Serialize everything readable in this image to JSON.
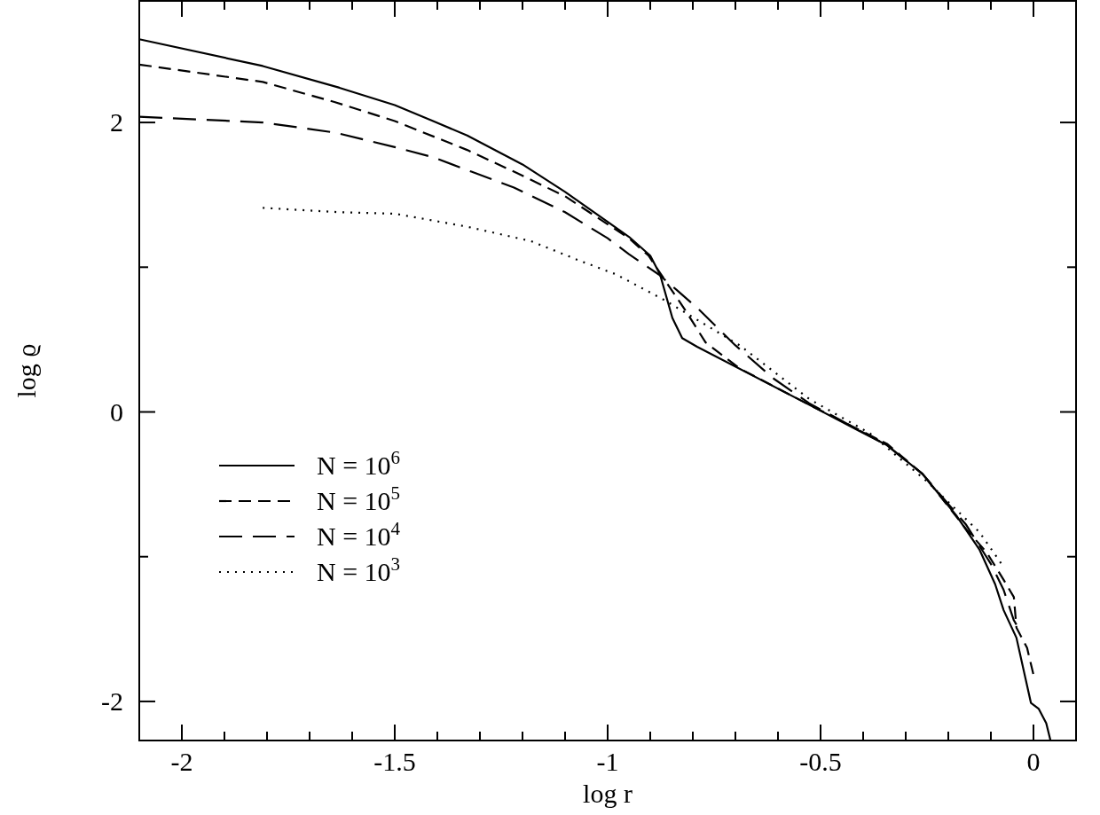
{
  "chart_data": {
    "type": "line",
    "xlabel": "log r",
    "ylabel": "log ϱ",
    "xlim": [
      -2.1,
      0.1
    ],
    "ylim": [
      -2.27,
      2.84
    ],
    "xticks": [
      {
        "value": -2.1,
        "label": null
      },
      -2,
      {
        "value": -1.9,
        "label": null
      },
      {
        "value": -1.8,
        "label": null
      },
      {
        "value": -1.7,
        "label": null
      },
      {
        "value": -1.6,
        "label": null
      },
      -1.5,
      {
        "value": -1.4,
        "label": null
      },
      {
        "value": -1.3,
        "label": null
      },
      {
        "value": -1.2,
        "label": null
      },
      {
        "value": -1.1,
        "label": null
      },
      -1,
      {
        "value": -0.9,
        "label": null
      },
      {
        "value": -0.8,
        "label": null
      },
      {
        "value": -0.7,
        "label": null
      },
      {
        "value": -0.6,
        "label": null
      },
      -0.5,
      {
        "value": -0.4,
        "label": null
      },
      {
        "value": -0.3,
        "label": null
      },
      {
        "value": -0.2,
        "label": null
      },
      {
        "value": -0.1,
        "label": null
      },
      0,
      {
        "value": 0.1,
        "label": null
      }
    ],
    "yticks": [
      -2,
      {
        "value": -1,
        "label": null
      },
      0,
      {
        "value": 1,
        "label": null
      },
      2
    ],
    "grid": false,
    "legend": "bottom left",
    "marker": "none",
    "series": [
      {
        "name": "N = 10$^{6}$",
        "color": "#000000",
        "line_style": "solid",
        "x": [
          -2.1,
          -1.81,
          -1.63,
          -1.5,
          -1.41,
          -1.33,
          -1.2,
          -1.1,
          -0.95,
          -0.9,
          -0.877,
          -0.848,
          -0.825,
          -0.79,
          -0.527,
          -0.41,
          -0.344,
          -0.26,
          -0.18,
          -0.127,
          -0.09,
          -0.07,
          -0.04,
          -0.006,
          0.012,
          0.03,
          0.04
        ],
        "values": [
          2.575,
          2.39,
          2.24,
          2.12,
          2.01,
          1.91,
          1.71,
          1.52,
          1.21,
          1.08,
          0.95,
          0.65,
          0.51,
          0.45,
          0.05,
          -0.13,
          -0.23,
          -0.43,
          -0.72,
          -0.95,
          -1.19,
          -1.37,
          -1.56,
          -2.01,
          -2.05,
          -2.15,
          -2.27
        ]
      },
      {
        "name": "N = 10$^{5}$",
        "color": "#000000",
        "line_style": "dashed",
        "x": [
          -2.1,
          -1.81,
          -1.64,
          -1.5,
          -1.33,
          -1.22,
          -1.1,
          -0.95,
          -0.904,
          -0.87,
          -0.817,
          -0.77,
          -0.69,
          -0.527,
          -0.344,
          -0.26,
          -0.158,
          -0.11,
          -0.07,
          -0.046,
          -0.04,
          -0.015,
          0.002
        ],
        "values": [
          2.4,
          2.28,
          2.14,
          2.01,
          1.81,
          1.66,
          1.49,
          1.2,
          1.08,
          0.93,
          0.7,
          0.48,
          0.3,
          0.05,
          -0.22,
          -0.43,
          -0.81,
          -0.97,
          -1.16,
          -1.28,
          -1.49,
          -1.63,
          -1.84
        ]
      },
      {
        "name": "N = 10$^{4}$",
        "color": "#000000",
        "line_style": "longdash",
        "x": [
          -2.1,
          -1.81,
          -1.64,
          -1.5,
          -1.41,
          -1.32,
          -1.22,
          -1.1,
          -1.0,
          -0.95,
          -0.88,
          -0.79,
          -0.7,
          -0.61,
          -0.527,
          -0.344,
          -0.26,
          -0.158,
          -0.1,
          -0.07,
          -0.046,
          -0.04
        ],
        "values": [
          2.04,
          2.0,
          1.93,
          1.83,
          1.76,
          1.66,
          1.55,
          1.38,
          1.2,
          1.09,
          0.95,
          0.72,
          0.46,
          0.23,
          0.06,
          -0.23,
          -0.43,
          -0.78,
          -1.05,
          -1.23,
          -1.44,
          -1.47
        ]
      },
      {
        "name": "N = 10$^{3}$",
        "color": "#000000",
        "line_style": "dotted",
        "x": [
          -1.81,
          -1.63,
          -1.5,
          -1.33,
          -1.18,
          -1.07,
          -0.98,
          -0.865,
          -0.69,
          -0.527,
          -0.383,
          -0.25,
          -0.127,
          -0.075
        ],
        "values": [
          1.41,
          1.38,
          1.37,
          1.28,
          1.18,
          1.05,
          0.95,
          0.77,
          0.46,
          0.09,
          -0.15,
          -0.48,
          -0.83,
          -1.05
        ]
      }
    ]
  }
}
